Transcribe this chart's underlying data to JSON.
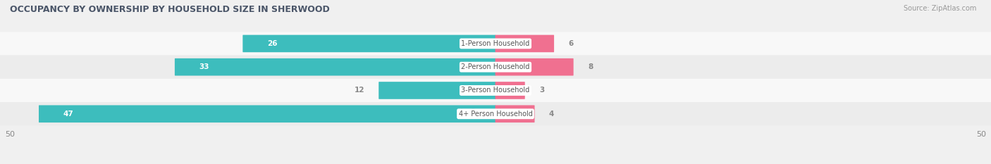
{
  "title": "OCCUPANCY BY OWNERSHIP BY HOUSEHOLD SIZE IN SHERWOOD",
  "source": "Source: ZipAtlas.com",
  "categories": [
    "1-Person Household",
    "2-Person Household",
    "3-Person Household",
    "4+ Person Household"
  ],
  "owner_values": [
    26,
    33,
    12,
    47
  ],
  "renter_values": [
    6,
    8,
    3,
    4
  ],
  "owner_color": "#3dbdbd",
  "renter_color": "#f07090",
  "axis_max": 50,
  "bg_color": "#f0f0f0",
  "row_colors": [
    "#f8f8f8",
    "#ececec",
    "#f8f8f8",
    "#ececec"
  ],
  "title_color": "#4a5568",
  "label_color": "#888888",
  "source_color": "#999999",
  "inside_label_threshold": 15
}
